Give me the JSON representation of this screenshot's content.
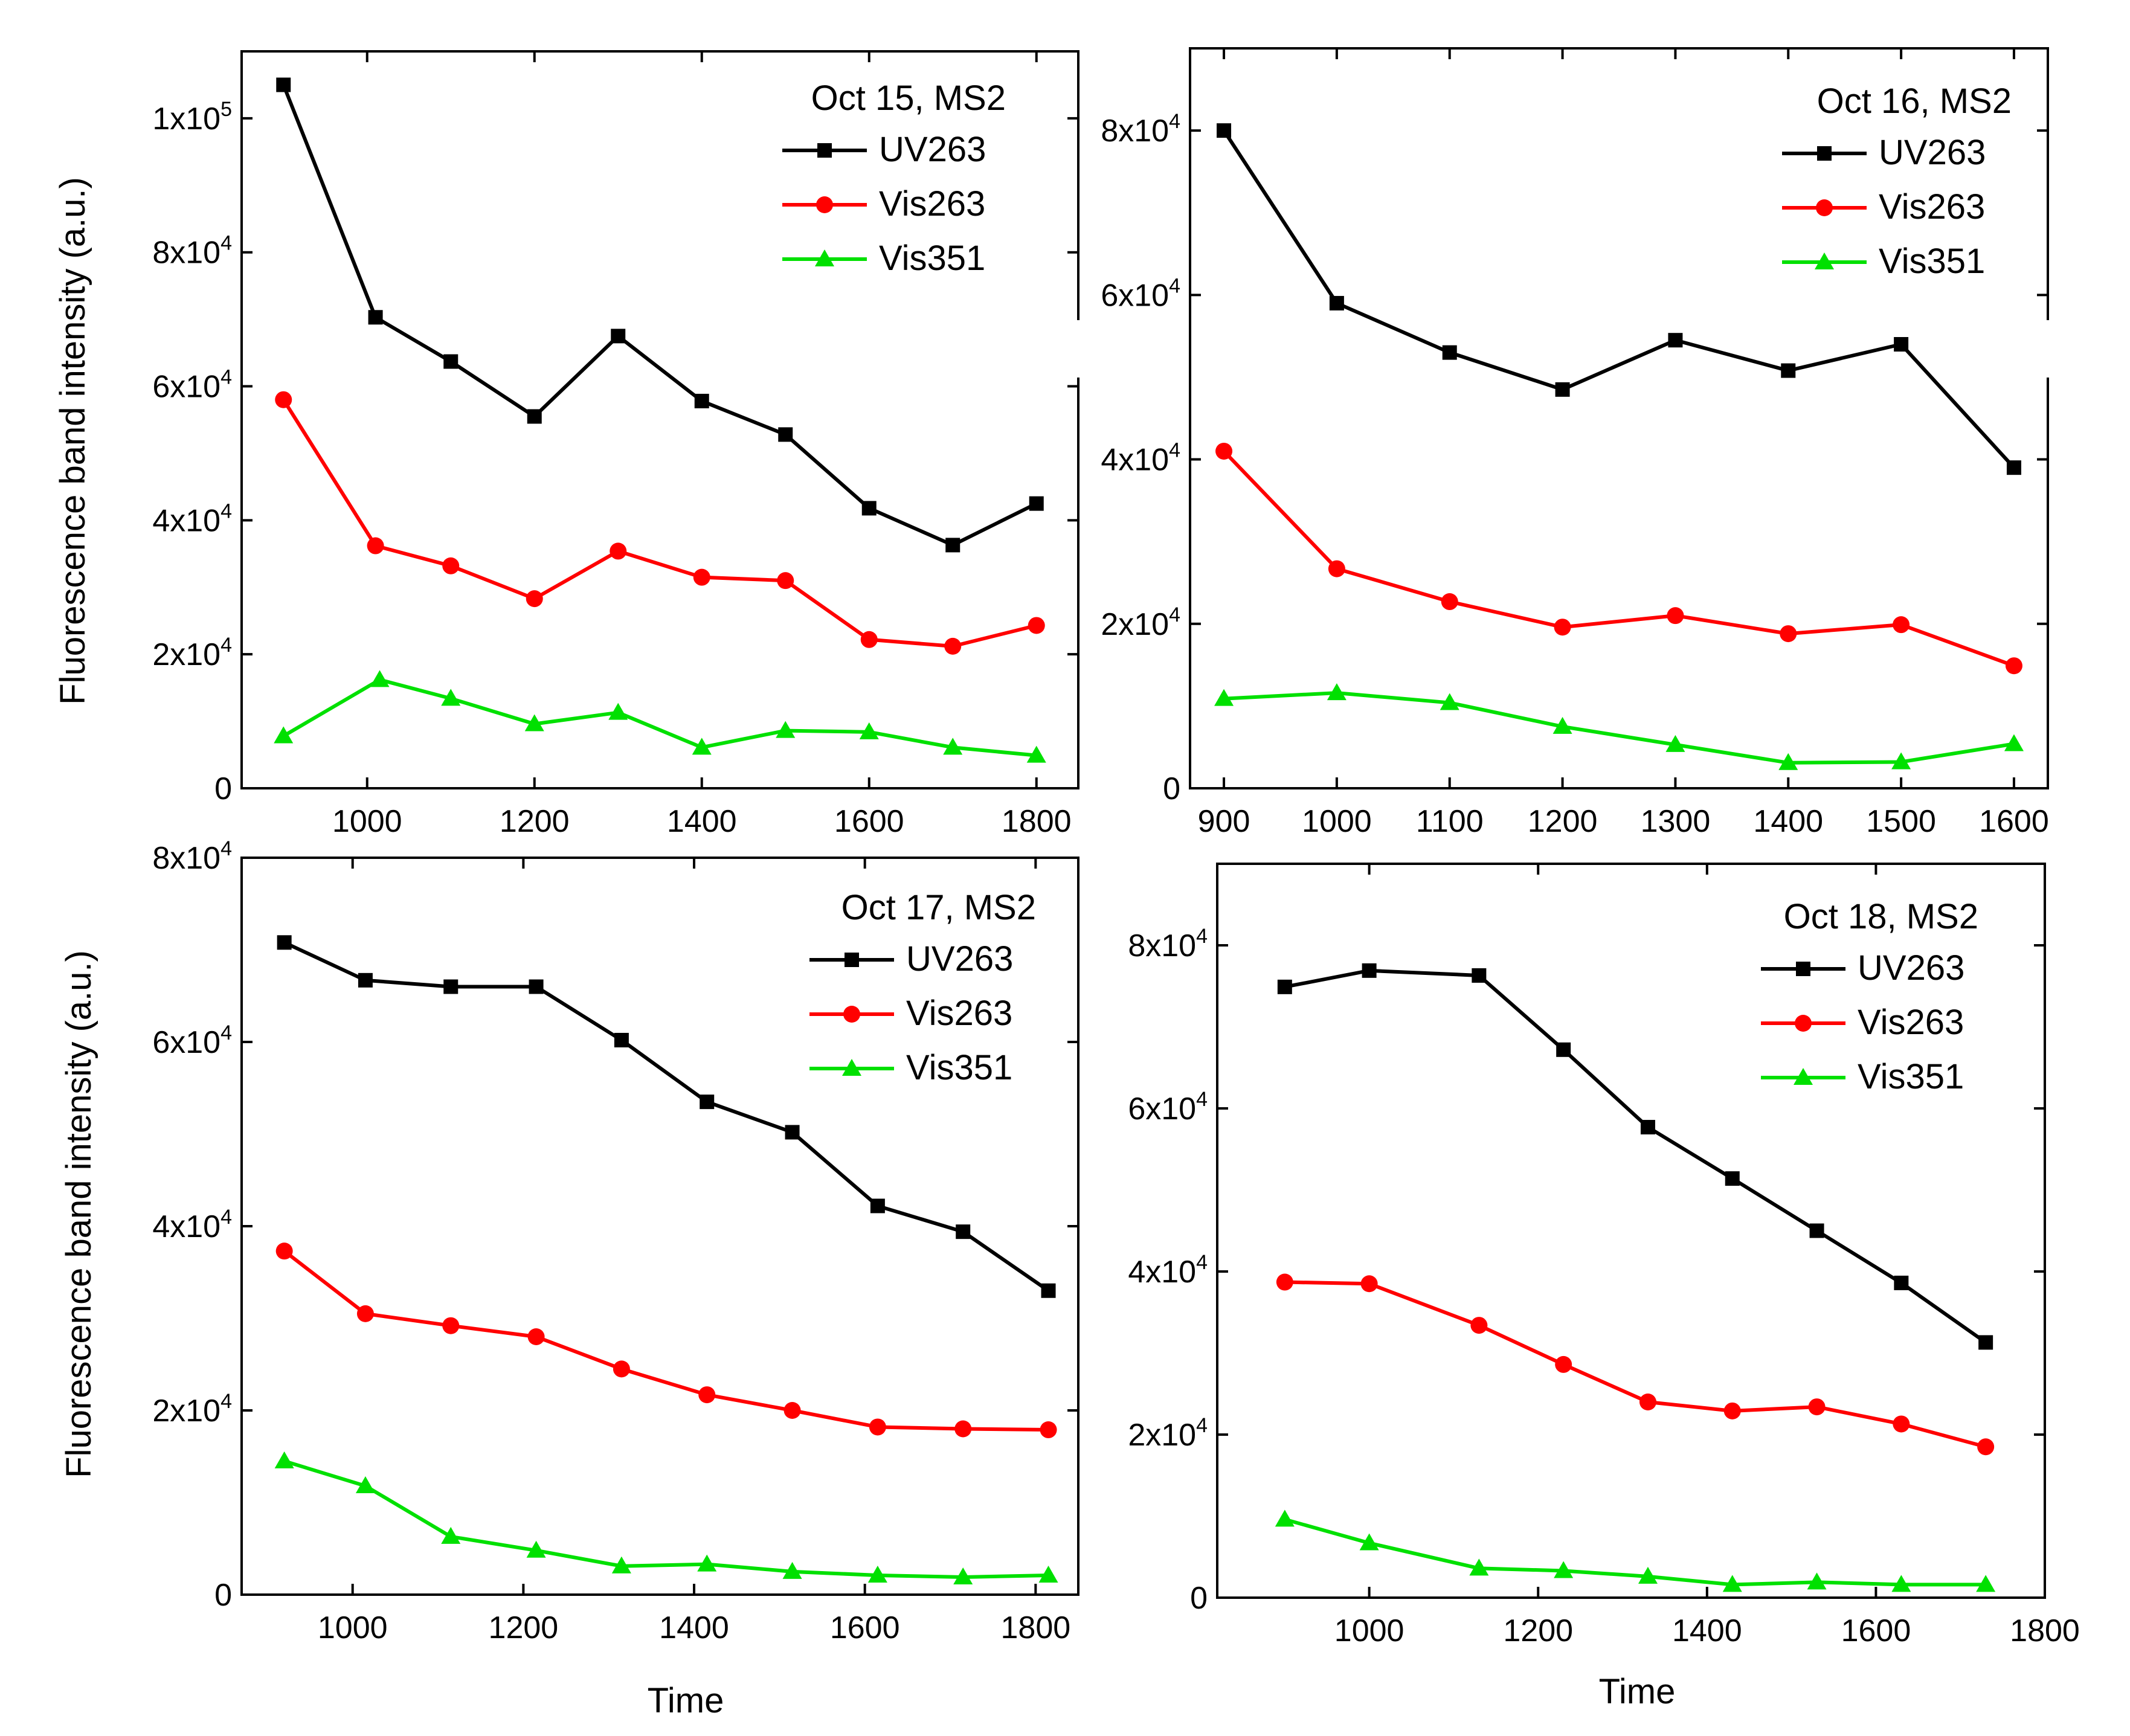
{
  "chart_data": [
    {
      "type": "line",
      "title": "Oct 15, MS2",
      "xlabel": "",
      "ylabel": "Fluorescence band intensity (a.u.)",
      "xlim": [
        850,
        1850
      ],
      "ylim": [
        0,
        110000
      ],
      "xticks": [
        1000,
        1200,
        1400,
        1600,
        1800
      ],
      "yticks": [
        0,
        20000,
        40000,
        60000,
        80000,
        100000
      ],
      "ytick_labels": [
        {
          "value": 0,
          "mant": "0",
          "exp": ""
        },
        {
          "value": 20000,
          "mant": "2x10",
          "exp": "4"
        },
        {
          "value": 40000,
          "mant": "4x10",
          "exp": "4"
        },
        {
          "value": 60000,
          "mant": "6x10",
          "exp": "4"
        },
        {
          "value": 80000,
          "mant": "8x10",
          "exp": "4"
        },
        {
          "value": 100000,
          "mant": "1x10",
          "exp": "5"
        }
      ],
      "legend_position": "top-right",
      "series": [
        {
          "name": "UV263",
          "color": "#000000",
          "marker": "square",
          "x": [
            900,
            1010,
            1100,
            1200,
            1300,
            1400,
            1500,
            1600,
            1700,
            1800
          ],
          "y": [
            105000,
            70300,
            63700,
            55500,
            67500,
            57800,
            52800,
            41800,
            36300,
            42500
          ]
        },
        {
          "name": "Vis263",
          "color": "#ff0000",
          "marker": "circle",
          "x": [
            900,
            1010,
            1100,
            1200,
            1300,
            1400,
            1500,
            1600,
            1700,
            1800
          ],
          "y": [
            58000,
            36200,
            33200,
            28300,
            35400,
            31500,
            31000,
            22200,
            21200,
            24300
          ]
        },
        {
          "name": "Vis351",
          "color": "#00e000",
          "marker": "triangle",
          "x": [
            900,
            1015,
            1100,
            1200,
            1300,
            1400,
            1500,
            1600,
            1700,
            1800
          ],
          "y": [
            7800,
            16200,
            13400,
            9600,
            11300,
            6100,
            8600,
            8400,
            6100,
            4900
          ]
        }
      ]
    },
    {
      "type": "line",
      "title": "Oct 16, MS2",
      "xlabel": "",
      "ylabel": "",
      "xlim": [
        870,
        1630
      ],
      "ylim": [
        0,
        90000
      ],
      "xticks": [
        900,
        1000,
        1100,
        1200,
        1300,
        1400,
        1500,
        1600
      ],
      "yticks": [
        0,
        20000,
        40000,
        60000,
        80000
      ],
      "ytick_labels": [
        {
          "value": 0,
          "mant": "0",
          "exp": ""
        },
        {
          "value": 20000,
          "mant": "2x10",
          "exp": "4"
        },
        {
          "value": 40000,
          "mant": "4x10",
          "exp": "4"
        },
        {
          "value": 60000,
          "mant": "6x10",
          "exp": "4"
        },
        {
          "value": 80000,
          "mant": "8x10",
          "exp": "4"
        }
      ],
      "legend_position": "top-right",
      "series": [
        {
          "name": "UV263",
          "color": "#000000",
          "marker": "square",
          "x": [
            900,
            1000,
            1100,
            1200,
            1300,
            1400,
            1500,
            1600
          ],
          "y": [
            80000,
            59000,
            53000,
            48500,
            54500,
            50800,
            54000,
            39000
          ]
        },
        {
          "name": "Vis263",
          "color": "#ff0000",
          "marker": "circle",
          "x": [
            900,
            1000,
            1100,
            1200,
            1300,
            1400,
            1500,
            1600
          ],
          "y": [
            41000,
            26700,
            22700,
            19600,
            21000,
            18800,
            19900,
            14900
          ]
        },
        {
          "name": "Vis351",
          "color": "#00e000",
          "marker": "triangle",
          "x": [
            900,
            1000,
            1100,
            1200,
            1300,
            1400,
            1500,
            1600
          ],
          "y": [
            10900,
            11600,
            10400,
            7500,
            5300,
            3100,
            3200,
            5400
          ]
        }
      ]
    },
    {
      "type": "line",
      "title": "Oct 17, MS2",
      "xlabel": "Time",
      "ylabel": "Fluorescence band intensity (a.u.)",
      "xlim": [
        870,
        1850
      ],
      "ylim": [
        0,
        80000
      ],
      "xticks": [
        1000,
        1200,
        1400,
        1600,
        1800
      ],
      "yticks": [
        0,
        20000,
        40000,
        60000,
        80000
      ],
      "ytick_labels": [
        {
          "value": 0,
          "mant": "0",
          "exp": ""
        },
        {
          "value": 20000,
          "mant": "2x10",
          "exp": "4"
        },
        {
          "value": 40000,
          "mant": "4x10",
          "exp": "4"
        },
        {
          "value": 60000,
          "mant": "6x10",
          "exp": "4"
        },
        {
          "value": 80000,
          "mant": "8x10",
          "exp": "4"
        }
      ],
      "legend_position": "top-right",
      "series": [
        {
          "name": "UV263",
          "color": "#000000",
          "marker": "square",
          "x": [
            920,
            1015,
            1115,
            1215,
            1315,
            1415,
            1515,
            1615,
            1715,
            1815
          ],
          "y": [
            70800,
            66700,
            66000,
            66000,
            60200,
            53500,
            50200,
            42200,
            39400,
            33000
          ]
        },
        {
          "name": "Vis263",
          "color": "#ff0000",
          "marker": "circle",
          "x": [
            920,
            1015,
            1115,
            1215,
            1315,
            1415,
            1515,
            1615,
            1715,
            1815
          ],
          "y": [
            37300,
            30500,
            29200,
            28000,
            24500,
            21700,
            20000,
            18200,
            18000,
            17900
          ]
        },
        {
          "name": "Vis351",
          "color": "#00e000",
          "marker": "triangle",
          "x": [
            920,
            1015,
            1115,
            1215,
            1315,
            1415,
            1515,
            1615,
            1715,
            1815
          ],
          "y": [
            14500,
            11800,
            6300,
            4800,
            3100,
            3300,
            2500,
            2100,
            1900,
            2100
          ]
        }
      ]
    },
    {
      "type": "line",
      "title": "Oct 18, MS2",
      "xlabel": "Time",
      "ylabel": "",
      "xlim": [
        820,
        1800
      ],
      "ylim": [
        0,
        90000
      ],
      "xticks": [
        1000,
        1200,
        1400,
        1600,
        1800
      ],
      "yticks": [
        0,
        20000,
        40000,
        60000,
        80000
      ],
      "ytick_labels": [
        {
          "value": 0,
          "mant": "0",
          "exp": ""
        },
        {
          "value": 20000,
          "mant": "2x10",
          "exp": "4"
        },
        {
          "value": 40000,
          "mant": "4x10",
          "exp": "4"
        },
        {
          "value": 60000,
          "mant": "6x10",
          "exp": "4"
        },
        {
          "value": 80000,
          "mant": "8x10",
          "exp": "4"
        }
      ],
      "legend_position": "top-right",
      "series": [
        {
          "name": "UV263",
          "color": "#000000",
          "marker": "square",
          "x": [
            900,
            1000,
            1130,
            1230,
            1330,
            1430,
            1530,
            1630,
            1730
          ],
          "y": [
            74900,
            76900,
            76300,
            67200,
            57700,
            51400,
            45000,
            38600,
            31300
          ]
        },
        {
          "name": "Vis263",
          "color": "#ff0000",
          "marker": "circle",
          "x": [
            900,
            1000,
            1130,
            1230,
            1330,
            1430,
            1530,
            1630,
            1730
          ],
          "y": [
            38700,
            38500,
            33400,
            28600,
            24000,
            22900,
            23400,
            21300,
            18500
          ]
        },
        {
          "name": "Vis351",
          "color": "#00e000",
          "marker": "triangle",
          "x": [
            900,
            1000,
            1130,
            1230,
            1330,
            1430,
            1530,
            1630,
            1730
          ],
          "y": [
            9600,
            6700,
            3600,
            3300,
            2600,
            1600,
            1900,
            1600,
            1600
          ]
        }
      ]
    }
  ]
}
